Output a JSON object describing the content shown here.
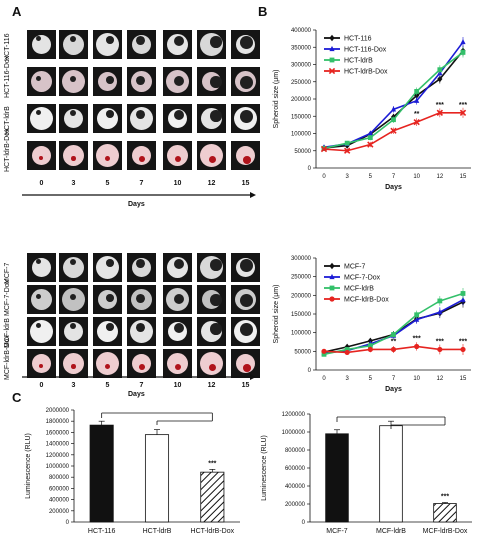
{
  "panel_labels": {
    "a": "A",
    "b": "B",
    "c": "C"
  },
  "panel_a": {
    "days": [
      "0",
      "3",
      "5",
      "7",
      "10",
      "12",
      "15"
    ],
    "axis_label": "Days",
    "top_rows": [
      "HCT-116",
      "HCT-116-Dox",
      "HCT-ldrB",
      "HCT-ldrB-Dox"
    ],
    "bottom_rows": [
      "MCF-7",
      "MCF-7-Dox",
      "MCF-ldrB",
      "MCF-ldrB-Dox"
    ]
  },
  "colors": {
    "black": "#111111",
    "blue": "#1c1cd6",
    "green": "#33c06a",
    "red": "#e62420"
  },
  "chart_data": [
    {
      "type": "line",
      "xlabel": "Days",
      "ylabel": "Spheroid  size  (μm)",
      "x": [
        0,
        3,
        5,
        7,
        10,
        12,
        15
      ],
      "x_ticks": [
        "0",
        "3",
        "5",
        "7",
        "10",
        "12",
        "15"
      ],
      "ylim": [
        0,
        400000
      ],
      "y_ticks": [
        "0",
        "50000",
        "100000",
        "150000",
        "200000",
        "250000",
        "300000",
        "350000",
        "400000"
      ],
      "legend_position": "top-left",
      "series": [
        {
          "name": "HCT-116",
          "color": "#111111",
          "marker": "diamond",
          "values": [
            58000,
            65000,
            98000,
            148000,
            210000,
            258000,
            340000
          ]
        },
        {
          "name": "HCT-116-Dox",
          "color": "#1c1cd6",
          "marker": "triangle",
          "values": [
            60000,
            70000,
            100000,
            170000,
            195000,
            275000,
            365000
          ]
        },
        {
          "name": "HCT-ldrB",
          "color": "#33c06a",
          "marker": "square",
          "values": [
            57000,
            72000,
            88000,
            140000,
            222000,
            285000,
            335000
          ]
        },
        {
          "name": "HCT-ldrB-Dox",
          "color": "#e62420",
          "marker": "x",
          "values": [
            55000,
            50000,
            68000,
            108000,
            133000,
            160000,
            160000
          ]
        }
      ],
      "annotations": [
        {
          "x": 10,
          "text": "**"
        },
        {
          "x": 12,
          "text": "***"
        },
        {
          "x": 15,
          "text": "***"
        }
      ]
    },
    {
      "type": "line",
      "xlabel": "Days",
      "ylabel": "Spheroid  size  (μm)",
      "x": [
        0,
        3,
        5,
        7,
        10,
        12,
        15
      ],
      "x_ticks": [
        "0",
        "3",
        "5",
        "7",
        "10",
        "12",
        "15"
      ],
      "ylim": [
        0,
        300000
      ],
      "y_ticks": [
        "0",
        "50000",
        "100000",
        "150000",
        "200000",
        "250000",
        "300000"
      ],
      "legend_position": "top-left",
      "series": [
        {
          "name": "MCF-7",
          "color": "#111111",
          "marker": "diamond",
          "values": [
            48000,
            62000,
            78000,
            95000,
            137000,
            152000,
            182000
          ]
        },
        {
          "name": "MCF-7-Dox",
          "color": "#1c1cd6",
          "marker": "triangle",
          "values": [
            45000,
            52000,
            70000,
            92000,
            135000,
            155000,
            188000
          ]
        },
        {
          "name": "MCF-ldrB",
          "color": "#33c06a",
          "marker": "square",
          "values": [
            42000,
            55000,
            65000,
            95000,
            148000,
            185000,
            205000
          ]
        },
        {
          "name": "MCF-ldrB-Dox",
          "color": "#e62420",
          "marker": "circle",
          "values": [
            50000,
            47000,
            55000,
            55000,
            63000,
            55000,
            55000
          ]
        }
      ],
      "annotations": [
        {
          "x": 7,
          "text": "**"
        },
        {
          "x": 10,
          "text": "***"
        },
        {
          "x": 12,
          "text": "***"
        },
        {
          "x": 15,
          "text": "***"
        }
      ]
    },
    {
      "type": "bar",
      "ylabel": "Luminescence  (RLU)",
      "categories": [
        "HCT-116",
        "HCT-ldrB",
        "HCT-ldrB-Dox"
      ],
      "values": [
        1730000,
        1560000,
        890000
      ],
      "errors": [
        70000,
        90000,
        50000
      ],
      "fills": [
        "black",
        "white",
        "hatched"
      ],
      "ylim": [
        0,
        2000000
      ],
      "y_ticks": [
        "0",
        "200000",
        "400000",
        "600000",
        "800000",
        "1000000",
        "1200000",
        "1400000",
        "1600000",
        "1800000",
        "2000000"
      ],
      "annotations": [
        {
          "category": "HCT-ldrB-Dox",
          "text": "***"
        }
      ]
    },
    {
      "type": "bar",
      "ylabel": "Luminescence  (RLU)",
      "categories": [
        "MCF-7",
        "MCF-ldrB",
        "MCF-ldrB-Dox"
      ],
      "values": [
        980000,
        1070000,
        205000
      ],
      "errors": [
        45000,
        50000,
        12000
      ],
      "fills": [
        "black",
        "white",
        "hatched"
      ],
      "ylim": [
        0,
        1200000
      ],
      "y_ticks": [
        "0",
        "200000",
        "400000",
        "600000",
        "800000",
        "1000000",
        "1200000"
      ],
      "annotations": [
        {
          "category": "MCF-ldrB-Dox",
          "text": "***"
        }
      ]
    }
  ]
}
